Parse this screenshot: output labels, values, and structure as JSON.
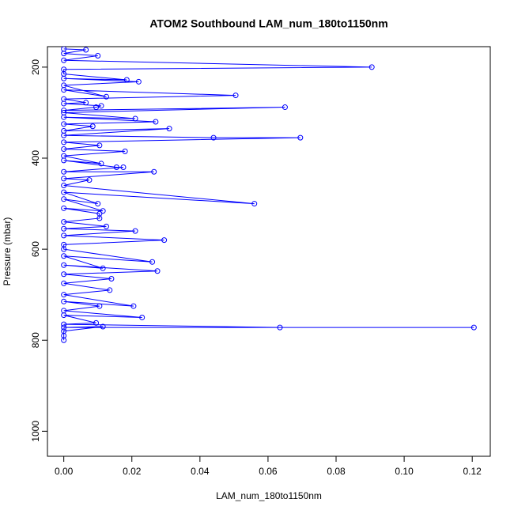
{
  "chart_data": {
    "type": "line",
    "title": "ATOM2 Southbound LAM_num_180to1150nm",
    "x_label": "LAM_num_180to1150nm",
    "y_label": "Pressure (mbar)",
    "color": "#0000ff",
    "markers": "open-circle",
    "grid": false,
    "xlim": [
      -0.0048,
      0.1253
    ],
    "ylim": [
      1055,
      155
    ],
    "xticks": [
      {
        "value": 0,
        "label": "0.00"
      },
      {
        "value": 0.02,
        "label": "0.02"
      },
      {
        "value": 0.04,
        "label": "0.04"
      },
      {
        "value": 0.06,
        "label": "0.06"
      },
      {
        "value": 0.08,
        "label": "0.08"
      },
      {
        "value": 0.1,
        "label": "0.10"
      },
      {
        "value": 0.12,
        "label": "0.12"
      }
    ],
    "yticks": [
      200,
      400,
      600,
      800,
      1000
    ],
    "x": [
      0,
      0.0065,
      0,
      0.01,
      0,
      0.0905,
      0,
      0,
      0.0185,
      0,
      0.022,
      0,
      0.0125,
      0,
      0.0505,
      0,
      0.0065,
      0,
      0.011,
      0.0095,
      0,
      0.065,
      0,
      0.021,
      0,
      0.027,
      0,
      0.0085,
      0,
      0.031,
      0,
      0.044,
      0.0695,
      0,
      0.0105,
      0,
      0.018,
      0,
      0.011,
      0,
      0.0155,
      0.0175,
      0,
      0.0265,
      0,
      0.0075,
      0,
      0.056,
      0,
      0.01,
      0,
      0.0115,
      0,
      0.0105,
      0.0105,
      0,
      0.0125,
      0,
      0.021,
      0,
      0.0295,
      0,
      0,
      0.026,
      0,
      0.0115,
      0,
      0.0275,
      0,
      0.014,
      0,
      0.0135,
      0,
      0.0205,
      0,
      0.0105,
      0,
      0.023,
      0,
      0.0095,
      0,
      0.0635,
      0.1205,
      0,
      0.0115,
      0,
      0,
      0
    ],
    "y": [
      160,
      162,
      170,
      175,
      185,
      200,
      205,
      215,
      228,
      225,
      232,
      240,
      265,
      250,
      262,
      270,
      278,
      280,
      285,
      288,
      295,
      288,
      300,
      313,
      310,
      320,
      325,
      330,
      340,
      335,
      350,
      355,
      355,
      365,
      372,
      380,
      385,
      395,
      412,
      405,
      420,
      420,
      430,
      430,
      445,
      448,
      460,
      500,
      475,
      500,
      490,
      516,
      510,
      522,
      532,
      540,
      550,
      555,
      560,
      570,
      580,
      590,
      600,
      628,
      615,
      642,
      635,
      648,
      655,
      665,
      675,
      690,
      700,
      725,
      715,
      725,
      735,
      750,
      745,
      762,
      765,
      772,
      772,
      772,
      770,
      780,
      790,
      800
    ]
  }
}
